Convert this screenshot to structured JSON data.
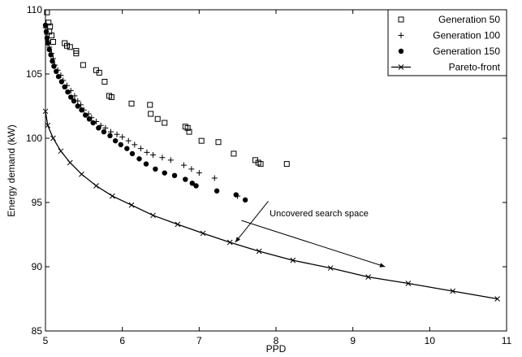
{
  "chart_data": {
    "type": "scatter",
    "xlabel": "PPD",
    "ylabel": "Energy demand (kW)",
    "xlim": [
      5,
      11
    ],
    "ylim": [
      85,
      110
    ],
    "xticks": [
      "5",
      "6",
      "7",
      "8",
      "9",
      "10",
      "11"
    ],
    "yticks": [
      "85",
      "90",
      "95",
      "100",
      "105",
      "110"
    ],
    "grid": false,
    "legend_position": "top-right",
    "annotation": "Uncovered search space",
    "series": [
      {
        "name": "Generation 50",
        "marker": "square",
        "points": [
          [
            5.02,
            109.8
          ],
          [
            5.04,
            109.0
          ],
          [
            5.06,
            108.7
          ],
          [
            5.05,
            108.3
          ],
          [
            5.08,
            108.0
          ],
          [
            5.1,
            107.5
          ],
          [
            5.25,
            107.4
          ],
          [
            5.28,
            107.2
          ],
          [
            5.32,
            107.1
          ],
          [
            5.4,
            106.8
          ],
          [
            5.4,
            106.6
          ],
          [
            5.49,
            105.7
          ],
          [
            5.66,
            105.3
          ],
          [
            5.7,
            105.1
          ],
          [
            5.77,
            104.4
          ],
          [
            5.83,
            103.3
          ],
          [
            5.86,
            103.2
          ],
          [
            6.12,
            102.7
          ],
          [
            6.36,
            102.6
          ],
          [
            6.37,
            101.9
          ],
          [
            6.46,
            101.5
          ],
          [
            6.55,
            101.2
          ],
          [
            6.82,
            100.9
          ],
          [
            6.85,
            100.8
          ],
          [
            6.87,
            100.5
          ],
          [
            7.03,
            99.8
          ],
          [
            7.25,
            99.7
          ],
          [
            7.45,
            98.8
          ],
          [
            7.73,
            98.3
          ],
          [
            7.77,
            98.1
          ],
          [
            7.8,
            98.0
          ],
          [
            8.14,
            98.0
          ]
        ]
      },
      {
        "name": "Generation 100",
        "marker": "plus",
        "points": [
          [
            5.0,
            108.6
          ],
          [
            5.02,
            108.1
          ],
          [
            5.03,
            107.6
          ],
          [
            5.05,
            107.1
          ],
          [
            5.08,
            106.6
          ],
          [
            5.1,
            106.2
          ],
          [
            5.12,
            105.7
          ],
          [
            5.16,
            105.3
          ],
          [
            5.2,
            104.9
          ],
          [
            5.23,
            104.5
          ],
          [
            5.28,
            104.1
          ],
          [
            5.33,
            103.7
          ],
          [
            5.38,
            103.3
          ],
          [
            5.42,
            102.9
          ],
          [
            5.46,
            102.6
          ],
          [
            5.5,
            102.2
          ],
          [
            5.56,
            101.9
          ],
          [
            5.6,
            101.6
          ],
          [
            5.66,
            101.3
          ],
          [
            5.72,
            101.0
          ],
          [
            5.78,
            100.8
          ],
          [
            5.85,
            100.5
          ],
          [
            5.93,
            100.3
          ],
          [
            6.0,
            100.1
          ],
          [
            6.08,
            99.8
          ],
          [
            6.16,
            99.5
          ],
          [
            6.24,
            99.2
          ],
          [
            6.32,
            98.9
          ],
          [
            6.4,
            98.7
          ],
          [
            6.52,
            98.5
          ],
          [
            6.63,
            98.3
          ],
          [
            6.8,
            97.9
          ],
          [
            6.9,
            97.6
          ],
          [
            7.0,
            97.3
          ],
          [
            7.2,
            96.9
          ],
          [
            7.5,
            95.5
          ]
        ]
      },
      {
        "name": "Generation 150",
        "marker": "dot",
        "points": [
          [
            5.0,
            108.8
          ],
          [
            5.01,
            108.3
          ],
          [
            5.02,
            107.8
          ],
          [
            5.03,
            107.4
          ],
          [
            5.05,
            106.9
          ],
          [
            5.07,
            106.5
          ],
          [
            5.09,
            106.0
          ],
          [
            5.11,
            105.6
          ],
          [
            5.14,
            105.2
          ],
          [
            5.17,
            104.8
          ],
          [
            5.21,
            104.4
          ],
          [
            5.25,
            104.0
          ],
          [
            5.29,
            103.6
          ],
          [
            5.33,
            103.2
          ],
          [
            5.37,
            102.9
          ],
          [
            5.42,
            102.5
          ],
          [
            5.47,
            102.2
          ],
          [
            5.52,
            101.8
          ],
          [
            5.57,
            101.5
          ],
          [
            5.62,
            101.2
          ],
          [
            5.69,
            100.8
          ],
          [
            5.76,
            100.5
          ],
          [
            5.84,
            100.2
          ],
          [
            5.91,
            99.8
          ],
          [
            5.98,
            99.5
          ],
          [
            6.06,
            99.2
          ],
          [
            6.13,
            98.8
          ],
          [
            6.22,
            98.4
          ],
          [
            6.31,
            98.0
          ],
          [
            6.43,
            97.6
          ],
          [
            6.55,
            97.3
          ],
          [
            6.68,
            97.1
          ],
          [
            6.82,
            96.8
          ],
          [
            6.91,
            96.5
          ],
          [
            6.96,
            96.3
          ],
          [
            7.23,
            95.9
          ],
          [
            7.48,
            95.6
          ],
          [
            7.6,
            95.2
          ]
        ]
      },
      {
        "name": "Pareto-front",
        "marker": "x-line",
        "points": [
          [
            5.0,
            102.1
          ],
          [
            5.03,
            101.0
          ],
          [
            5.1,
            100.0
          ],
          [
            5.2,
            99.0
          ],
          [
            5.32,
            98.1
          ],
          [
            5.47,
            97.2
          ],
          [
            5.66,
            96.3
          ],
          [
            5.87,
            95.5
          ],
          [
            6.12,
            94.8
          ],
          [
            6.4,
            94.0
          ],
          [
            6.72,
            93.3
          ],
          [
            7.05,
            92.6
          ],
          [
            7.4,
            91.9
          ],
          [
            7.78,
            91.2
          ],
          [
            8.22,
            90.5
          ],
          [
            8.71,
            89.9
          ],
          [
            9.2,
            89.2
          ],
          [
            9.72,
            88.7
          ],
          [
            10.3,
            88.1
          ],
          [
            10.88,
            87.5
          ]
        ]
      }
    ],
    "arrows": [
      {
        "from": [
          7.9,
          95.1
        ],
        "to": [
          7.47,
          91.9
        ]
      },
      {
        "from": [
          7.55,
          93.6
        ],
        "to": [
          9.42,
          90.0
        ]
      }
    ]
  }
}
